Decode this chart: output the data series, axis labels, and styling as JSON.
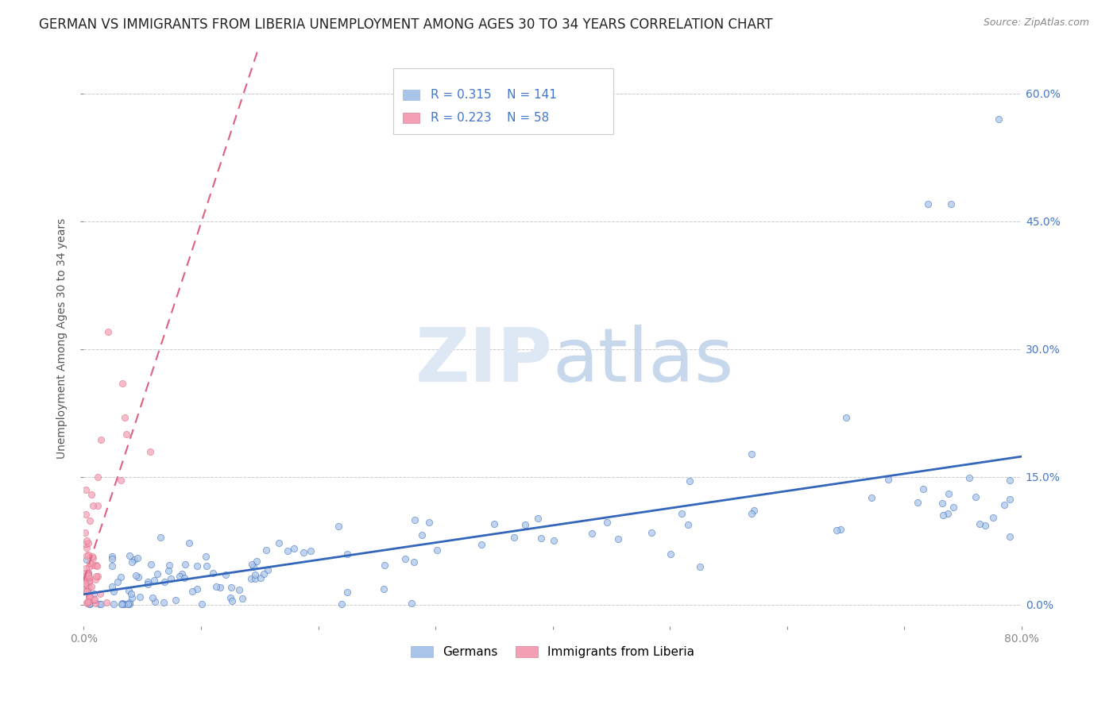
{
  "title": "GERMAN VS IMMIGRANTS FROM LIBERIA UNEMPLOYMENT AMONG AGES 30 TO 34 YEARS CORRELATION CHART",
  "source": "Source: ZipAtlas.com",
  "ylabel": "Unemployment Among Ages 30 to 34 years",
  "legend_labels": [
    "Germans",
    "Immigrants from Liberia"
  ],
  "legend_r": [
    0.315,
    0.223
  ],
  "legend_n": [
    141,
    58
  ],
  "xmin": 0.0,
  "xmax": 0.8,
  "ymin": -0.025,
  "ymax": 0.65,
  "yticks": [
    0.0,
    0.15,
    0.3,
    0.45,
    0.6
  ],
  "ytick_labels": [
    "0.0%",
    "15.0%",
    "30.0%",
    "45.0%",
    "60.0%"
  ],
  "xticks": [
    0.0,
    0.1,
    0.2,
    0.3,
    0.4,
    0.5,
    0.6,
    0.7,
    0.8
  ],
  "color_german": "#a8c4e8",
  "color_liberia": "#f4a0b4",
  "trendline_german_color": "#3366bb",
  "trendline_liberia_color": "#e06080",
  "background_color": "#ffffff",
  "watermark_color": "#d0dff0",
  "title_fontsize": 12,
  "axis_label_fontsize": 10,
  "tick_fontsize": 10,
  "legend_fontsize": 11,
  "source_fontsize": 9
}
